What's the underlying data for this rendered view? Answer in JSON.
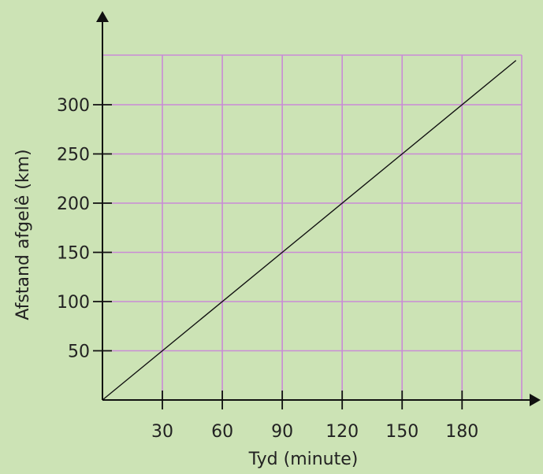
{
  "colors": {
    "background": "#cce3b5",
    "grid": "#c98bd6",
    "axis": "#111111",
    "line": "#111111",
    "text": "#222222"
  },
  "chart_data": {
    "type": "line",
    "title": "",
    "xlabel": "Tyd (minute)",
    "ylabel": "Afstand afgelê (km)",
    "xlim": [
      0,
      210
    ],
    "ylim": [
      0,
      350
    ],
    "x_ticks": [
      30,
      60,
      90,
      120,
      150,
      180
    ],
    "y_ticks": [
      50,
      100,
      150,
      200,
      250,
      300
    ],
    "x_tick_labels": [
      "30",
      "60",
      "90",
      "120",
      "150",
      "180"
    ],
    "y_tick_labels": [
      "50",
      "100",
      "150",
      "200",
      "250",
      "300"
    ],
    "grid": true,
    "series": [
      {
        "x": [
          0,
          207
        ],
        "y": [
          0,
          345
        ]
      }
    ]
  }
}
